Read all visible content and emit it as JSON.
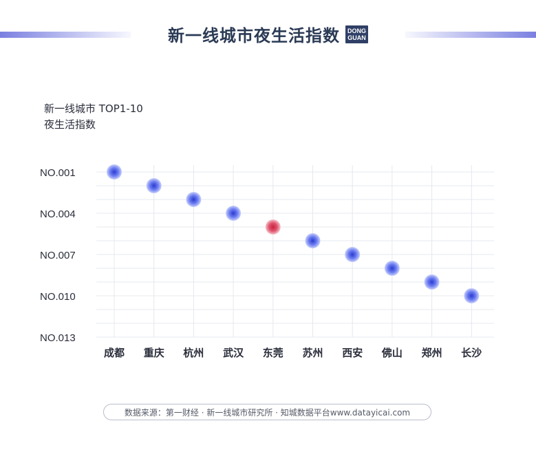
{
  "header": {
    "title": "新一线城市夜生活指数",
    "logo_line1": "DONG",
    "logo_line2": "GUAN"
  },
  "subtitle": {
    "line1": "新一线城市 TOP1-10",
    "line2": "夜生活指数"
  },
  "source": "数据来源：第一财经 · 新一线城市研究所 · 知城数据平台www.datayicai.com",
  "colors": {
    "point": "#6b7cf0",
    "highlight": "#d9455f",
    "grid": "#e6e8ef"
  },
  "chart_data": {
    "type": "scatter",
    "categories": [
      "成都",
      "重庆",
      "杭州",
      "武汉",
      "东莞",
      "苏州",
      "西安",
      "佛山",
      "郑州",
      "长沙"
    ],
    "values": [
      1,
      2,
      3,
      4,
      5,
      6,
      7,
      8,
      9,
      10
    ],
    "highlight_category": "东莞",
    "y_ticks": [
      {
        "value": 1,
        "label": "NO.001"
      },
      {
        "value": 4,
        "label": "NO.004"
      },
      {
        "value": 7,
        "label": "NO.007"
      },
      {
        "value": 10,
        "label": "NO.010"
      },
      {
        "value": 13,
        "label": "NO.013"
      }
    ],
    "ylim": [
      1,
      13
    ],
    "y_inverted": true,
    "grid": true
  }
}
